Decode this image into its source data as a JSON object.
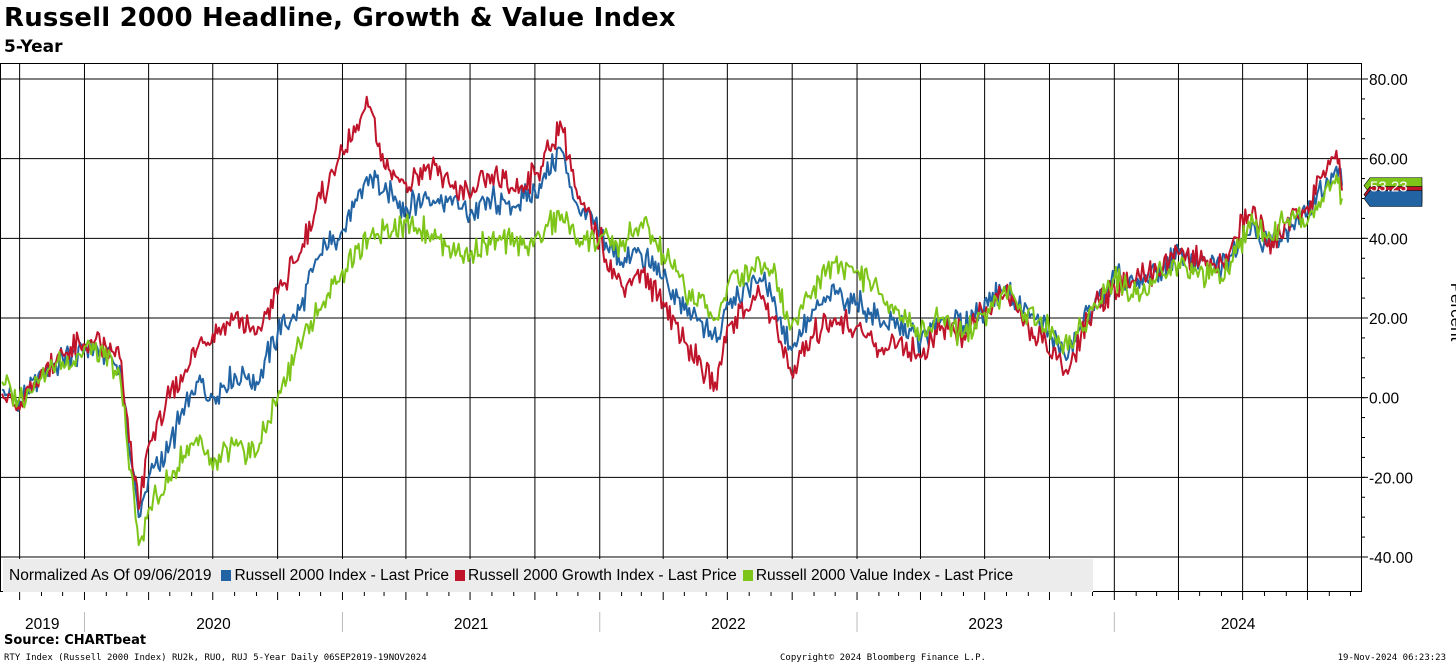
{
  "title": "Russell 2000 Headline, Growth & Value Index",
  "subtitle": "5-Year",
  "source": "Source: CHARTbeat",
  "footer": {
    "left": "RTY Index (Russell 2000 Index) RU2k, RUO, RUJ 5-Year  Daily 06SEP2019-19NOV2024",
    "center": "Copyright© 2024 Bloomberg Finance L.P.",
    "right": "19-Nov-2024 06:23:23"
  },
  "legend": {
    "prefix": "Normalized As Of 09/06/2019",
    "items": [
      {
        "label": "Russell 2000 Index - Last Price",
        "color": "#2163a3"
      },
      {
        "label": "Russell 2000 Growth Index - Last Price",
        "color": "#c0142b"
      },
      {
        "label": "Russell 2000 Value Index - Last Price",
        "color": "#7ec51a"
      }
    ]
  },
  "chart_data": {
    "type": "line",
    "ylabel": "Percent",
    "ylim": [
      -40,
      80
    ],
    "yticks": [
      "80.00",
      "60.00",
      "40.00",
      "20.00",
      "0.00",
      "-20.00",
      "-40.00"
    ],
    "x_year_labels": [
      "2019",
      "2020",
      "2021",
      "2022",
      "2023",
      "2024"
    ],
    "last_value_label": "53.23",
    "series": [
      {
        "name": "Russell 2000 Index - Last Price",
        "color": "#2163a3",
        "x": [
          "2019-09-06",
          "2019-10-01",
          "2019-11-01",
          "2019-12-01",
          "2020-01-15",
          "2020-02-20",
          "2020-03-18",
          "2020-04-01",
          "2020-05-01",
          "2020-06-08",
          "2020-07-01",
          "2020-08-01",
          "2020-09-01",
          "2020-10-01",
          "2020-11-01",
          "2020-12-01",
          "2021-01-01",
          "2021-02-09",
          "2021-03-01",
          "2021-04-01",
          "2021-05-01",
          "2021-06-01",
          "2021-07-01",
          "2021-08-01",
          "2021-09-01",
          "2021-10-01",
          "2021-11-08",
          "2021-12-01",
          "2022-01-01",
          "2022-02-01",
          "2022-03-01",
          "2022-04-01",
          "2022-05-01",
          "2022-06-16",
          "2022-07-01",
          "2022-08-16",
          "2022-09-01",
          "2022-09-30",
          "2022-11-01",
          "2022-12-01",
          "2023-01-01",
          "2023-02-01",
          "2023-03-01",
          "2023-04-01",
          "2023-05-01",
          "2023-06-01",
          "2023-07-31",
          "2023-08-15",
          "2023-09-01",
          "2023-10-27",
          "2023-11-15",
          "2023-12-01",
          "2024-01-01",
          "2024-02-01",
          "2024-03-01",
          "2024-04-01",
          "2024-05-01",
          "2024-06-01",
          "2024-07-16",
          "2024-08-05",
          "2024-09-01",
          "2024-10-01",
          "2024-11-11",
          "2024-11-19"
        ],
        "values": [
          2,
          -1,
          6,
          10,
          13,
          8,
          -30,
          -20,
          -12,
          4,
          0,
          6,
          4,
          16,
          22,
          36,
          42,
          56,
          52,
          48,
          50,
          50,
          46,
          50,
          48,
          52,
          62,
          48,
          42,
          34,
          36,
          30,
          22,
          14,
          24,
          30,
          26,
          12,
          22,
          26,
          24,
          20,
          18,
          14,
          20,
          18,
          28,
          24,
          22,
          10,
          18,
          22,
          30,
          28,
          32,
          36,
          34,
          32,
          44,
          38,
          42,
          46,
          58,
          53.23
        ]
      },
      {
        "name": "Russell 2000 Growth Index - Last Price",
        "color": "#c0142b",
        "x": [
          "2019-09-06",
          "2019-10-01",
          "2019-11-01",
          "2019-12-01",
          "2020-01-15",
          "2020-02-20",
          "2020-03-18",
          "2020-04-01",
          "2020-05-01",
          "2020-06-08",
          "2020-07-01",
          "2020-08-01",
          "2020-09-01",
          "2020-10-01",
          "2020-11-01",
          "2020-12-01",
          "2021-01-01",
          "2021-02-09",
          "2021-03-01",
          "2021-04-01",
          "2021-05-01",
          "2021-06-01",
          "2021-07-01",
          "2021-08-01",
          "2021-09-01",
          "2021-10-01",
          "2021-11-08",
          "2021-12-01",
          "2022-01-01",
          "2022-02-01",
          "2022-03-01",
          "2022-04-01",
          "2022-05-01",
          "2022-06-16",
          "2022-07-01",
          "2022-08-16",
          "2022-09-01",
          "2022-09-30",
          "2022-11-01",
          "2022-12-01",
          "2023-01-01",
          "2023-02-01",
          "2023-03-01",
          "2023-04-01",
          "2023-05-01",
          "2023-06-01",
          "2023-07-31",
          "2023-08-15",
          "2023-09-01",
          "2023-10-27",
          "2023-11-15",
          "2023-12-01",
          "2024-01-01",
          "2024-02-01",
          "2024-03-01",
          "2024-04-01",
          "2024-05-01",
          "2024-06-01",
          "2024-07-16",
          "2024-08-05",
          "2024-09-01",
          "2024-10-01",
          "2024-11-11",
          "2024-11-19"
        ],
        "values": [
          1,
          -3,
          7,
          11,
          14,
          10,
          -28,
          -12,
          0,
          12,
          16,
          20,
          16,
          26,
          36,
          50,
          62,
          73,
          58,
          54,
          58,
          54,
          50,
          56,
          52,
          56,
          68,
          50,
          40,
          28,
          32,
          24,
          14,
          2,
          18,
          26,
          20,
          6,
          16,
          20,
          18,
          12,
          14,
          10,
          18,
          16,
          26,
          22,
          18,
          6,
          16,
          22,
          28,
          30,
          32,
          36,
          34,
          34,
          48,
          38,
          44,
          48,
          62,
          52
        ]
      },
      {
        "name": "Russell 2000 Value Index - Last Price",
        "color": "#7ec51a",
        "x": [
          "2019-09-06",
          "2019-10-01",
          "2019-11-01",
          "2019-12-01",
          "2020-01-15",
          "2020-02-20",
          "2020-03-18",
          "2020-04-01",
          "2020-05-01",
          "2020-06-08",
          "2020-07-01",
          "2020-08-01",
          "2020-09-01",
          "2020-10-01",
          "2020-11-01",
          "2020-12-01",
          "2021-01-01",
          "2021-02-09",
          "2021-03-01",
          "2021-04-01",
          "2021-05-01",
          "2021-06-01",
          "2021-07-01",
          "2021-08-01",
          "2021-09-01",
          "2021-10-01",
          "2021-11-08",
          "2021-12-01",
          "2022-01-01",
          "2022-02-01",
          "2022-03-01",
          "2022-04-01",
          "2022-05-01",
          "2022-06-16",
          "2022-07-01",
          "2022-08-16",
          "2022-09-01",
          "2022-09-30",
          "2022-11-01",
          "2022-12-01",
          "2023-01-01",
          "2023-02-01",
          "2023-03-01",
          "2023-04-01",
          "2023-05-01",
          "2023-06-01",
          "2023-07-31",
          "2023-08-15",
          "2023-09-01",
          "2023-10-27",
          "2023-11-15",
          "2023-12-01",
          "2024-01-01",
          "2024-02-01",
          "2024-03-01",
          "2024-04-01",
          "2024-05-01",
          "2024-06-01",
          "2024-07-16",
          "2024-08-05",
          "2024-09-01",
          "2024-10-01",
          "2024-11-11",
          "2024-11-19"
        ],
        "values": [
          4,
          0,
          5,
          9,
          12,
          6,
          -37,
          -28,
          -20,
          -10,
          -18,
          -12,
          -14,
          0,
          14,
          22,
          32,
          40,
          42,
          44,
          42,
          38,
          36,
          40,
          38,
          40,
          46,
          40,
          40,
          38,
          44,
          36,
          28,
          20,
          28,
          34,
          32,
          18,
          28,
          34,
          32,
          26,
          22,
          16,
          20,
          16,
          26,
          24,
          22,
          12,
          18,
          22,
          30,
          26,
          30,
          34,
          32,
          30,
          44,
          40,
          44,
          44,
          56,
          50
        ]
      }
    ]
  }
}
